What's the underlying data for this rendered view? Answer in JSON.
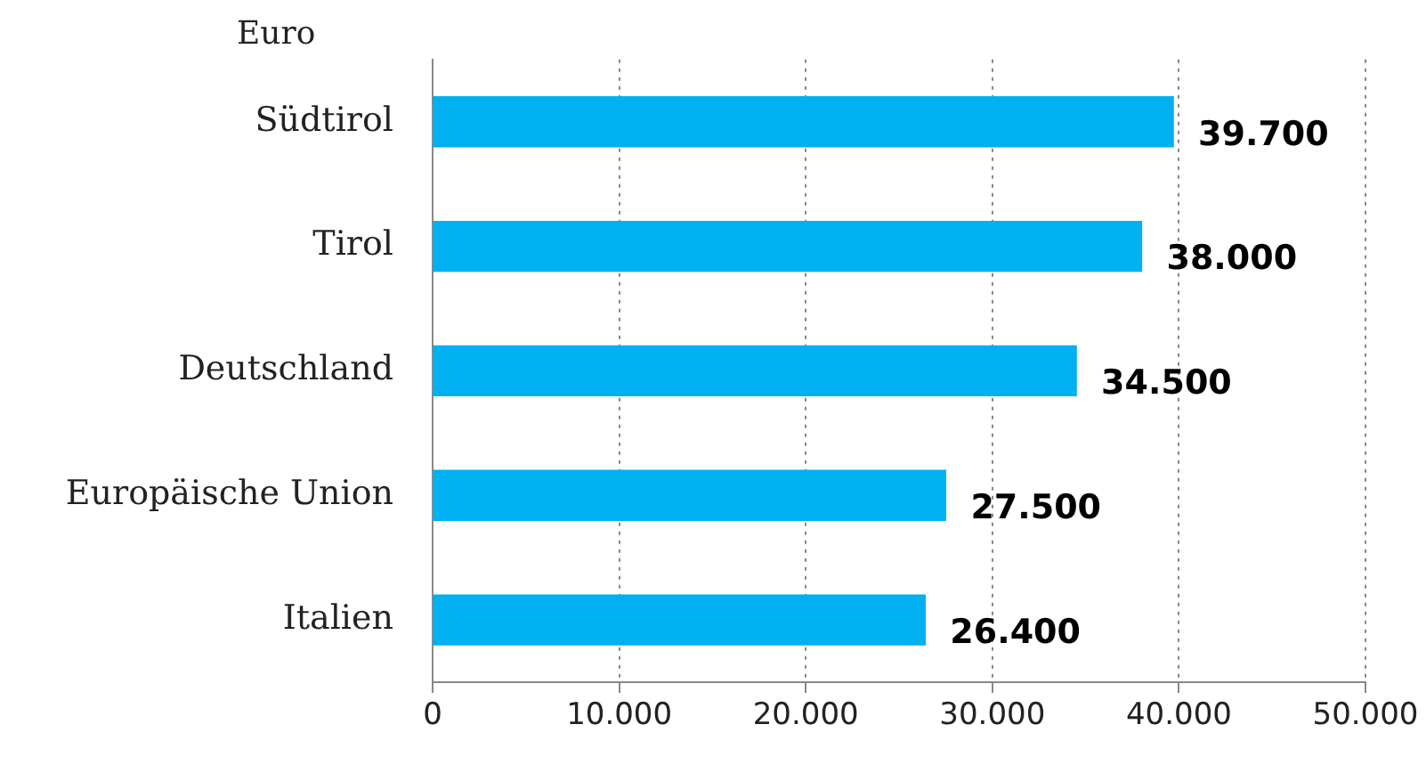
{
  "chart_data": {
    "type": "bar",
    "orientation": "horizontal",
    "ylabel": "Euro",
    "categories": [
      "Südtirol",
      "Tirol",
      "Deutschland",
      "Europäische Union",
      "Italien"
    ],
    "values": [
      39700,
      38000,
      34500,
      27500,
      26400
    ],
    "value_labels": [
      "39.700",
      "38.000",
      "34.500",
      "27.500",
      "26.400"
    ],
    "color": "#00b0f0",
    "xlim": [
      0,
      50000
    ],
    "xticks": [
      0,
      {
        "value": 10000,
        "label": "10.000"
      },
      {
        "value": 20000,
        "label": "20.000"
      },
      {
        "value": 30000,
        "label": "30.000"
      },
      {
        "value": 40000,
        "label": "40.000"
      },
      {
        "value": 50000,
        "label": "50.000"
      }
    ],
    "grid": "x",
    "legend": false
  }
}
